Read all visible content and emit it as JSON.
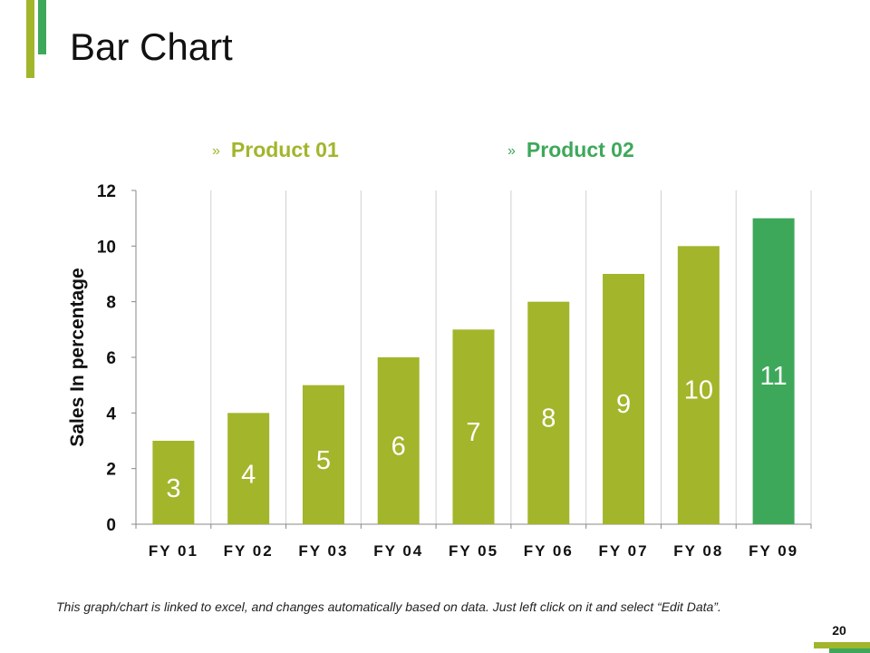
{
  "title": "Bar Chart",
  "legend": [
    {
      "chevron": "»",
      "label": "Product 01"
    },
    {
      "chevron": "»",
      "label": "Product 02"
    }
  ],
  "colors": {
    "product01": "#a3b52b",
    "product02": "#3ea85a",
    "accent_light": "#a3b52b",
    "accent_dark": "#3ea85a",
    "grid": "#d0d0d0",
    "axis": "#888888"
  },
  "chart_data": {
    "type": "bar",
    "title": "",
    "xlabel": "",
    "ylabel": "Sales In percentage",
    "ylim": [
      0,
      12
    ],
    "yticks": [
      0,
      2,
      4,
      6,
      8,
      10,
      12
    ],
    "categories": [
      "FY 01",
      "FY 02",
      "FY 03",
      "FY 04",
      "FY 05",
      "FY 06",
      "FY 07",
      "FY 08",
      "FY 09"
    ],
    "series": [
      {
        "name": "Product 01",
        "values": [
          3,
          4,
          5,
          6,
          7,
          8,
          9,
          10,
          null
        ]
      },
      {
        "name": "Product 02",
        "values": [
          null,
          null,
          null,
          null,
          null,
          null,
          null,
          null,
          11
        ]
      }
    ],
    "data_labels": [
      "3",
      "4",
      "5",
      "6",
      "7",
      "8",
      "9",
      "10",
      "11"
    ]
  },
  "footnote": "This graph/chart is linked to excel, and changes automatically based on data. Just left click on it and select “Edit Data”.",
  "page_number": "20"
}
